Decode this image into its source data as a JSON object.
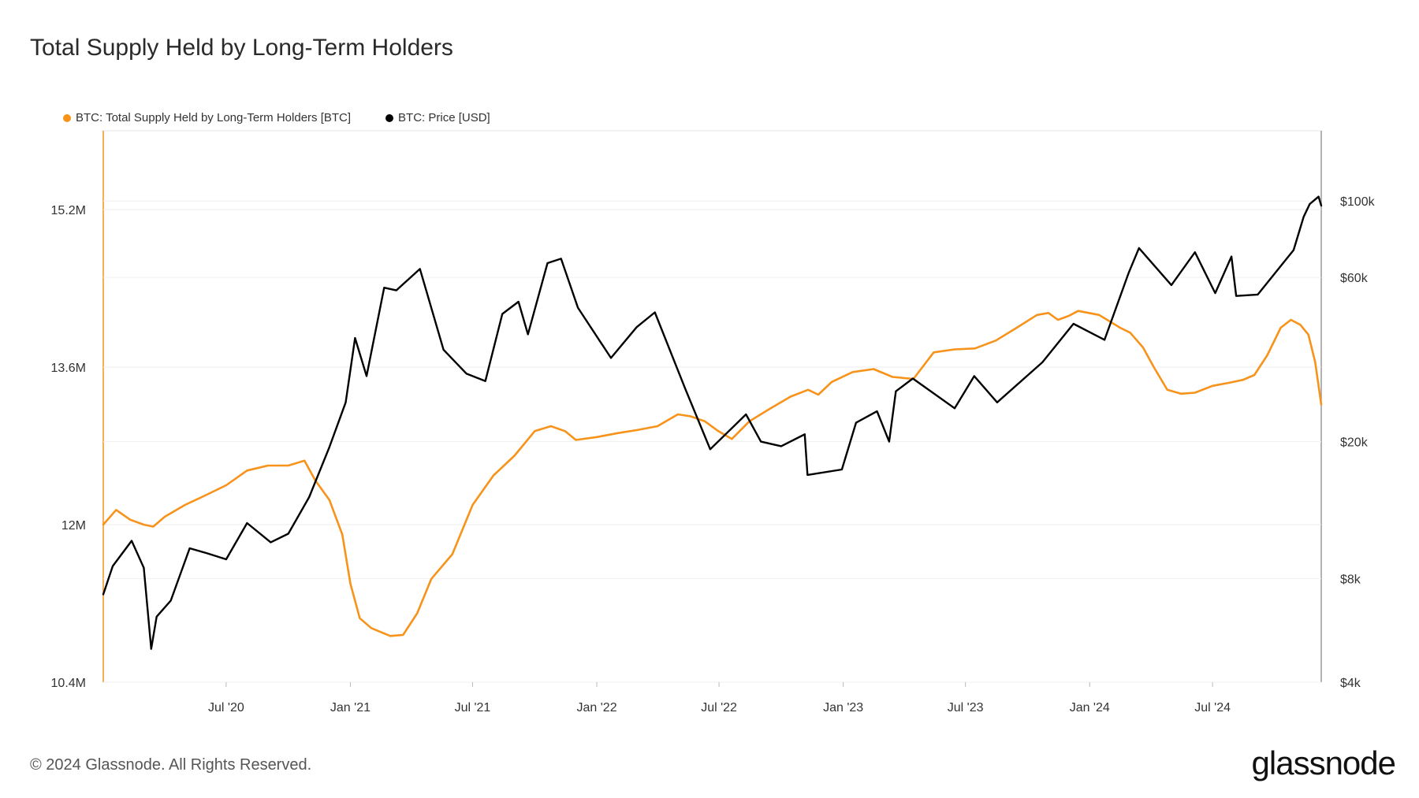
{
  "title": "Total Supply Held by Long-Term Holders",
  "legend": [
    {
      "label": "BTC: Total Supply Held by Long-Term Holders [BTC]",
      "color": "#f7931a"
    },
    {
      "label": "BTC: Price [USD]",
      "color": "#000000"
    }
  ],
  "footer": "© 2024 Glassnode. All Rights Reserved.",
  "logo": "glassnode",
  "chart_data": {
    "type": "line",
    "x_range": [
      "2020-01-01",
      "2024-12-09"
    ],
    "x_ticks": [
      {
        "date": "2020-07-01",
        "label": "Jul '20"
      },
      {
        "date": "2021-01-01",
        "label": "Jan '21"
      },
      {
        "date": "2021-07-01",
        "label": "Jul '21"
      },
      {
        "date": "2022-01-01",
        "label": "Jan '22"
      },
      {
        "date": "2022-07-01",
        "label": "Jul '22"
      },
      {
        "date": "2023-01-01",
        "label": "Jan '23"
      },
      {
        "date": "2023-07-01",
        "label": "Jul '23"
      },
      {
        "date": "2024-01-01",
        "label": "Jan '24"
      },
      {
        "date": "2024-07-01",
        "label": "Jul '24"
      }
    ],
    "y_left": {
      "range": [
        10400000,
        16000000
      ],
      "ticks": [
        {
          "value": 15200000,
          "label": "15.2M"
        },
        {
          "value": 13600000,
          "label": "13.6M"
        },
        {
          "value": 12000000,
          "label": "12M"
        },
        {
          "value": 10400000,
          "label": "10.4M"
        }
      ]
    },
    "y_right": {
      "scale": "log",
      "range": [
        4000,
        160000
      ],
      "ticks": [
        {
          "value": 100000,
          "label": "$100k"
        },
        {
          "value": 60000,
          "label": "$60k"
        },
        {
          "value": 20000,
          "label": "$20k"
        },
        {
          "value": 8000,
          "label": "$8k"
        },
        {
          "value": 4000,
          "label": "$4k"
        }
      ]
    },
    "series": [
      {
        "name": "BTC: Total Supply Held by Long-Term Holders [BTC]",
        "axis": "left",
        "color": "#f7931a",
        "points": [
          [
            "2020-01-01",
            12000000
          ],
          [
            "2020-01-20",
            12150000
          ],
          [
            "2020-02-10",
            12050000
          ],
          [
            "2020-03-01",
            12000000
          ],
          [
            "2020-03-15",
            11980000
          ],
          [
            "2020-04-01",
            12080000
          ],
          [
            "2020-05-01",
            12200000
          ],
          [
            "2020-06-01",
            12300000
          ],
          [
            "2020-07-01",
            12400000
          ],
          [
            "2020-08-01",
            12550000
          ],
          [
            "2020-09-01",
            12600000
          ],
          [
            "2020-10-01",
            12600000
          ],
          [
            "2020-10-25",
            12650000
          ],
          [
            "2020-11-10",
            12450000
          ],
          [
            "2020-12-01",
            12250000
          ],
          [
            "2020-12-20",
            11900000
          ],
          [
            "2021-01-01",
            11400000
          ],
          [
            "2021-01-15",
            11050000
          ],
          [
            "2021-02-01",
            10950000
          ],
          [
            "2021-03-01",
            10870000
          ],
          [
            "2021-03-20",
            10880000
          ],
          [
            "2021-04-10",
            11100000
          ],
          [
            "2021-05-01",
            11450000
          ],
          [
            "2021-06-01",
            11700000
          ],
          [
            "2021-07-01",
            12200000
          ],
          [
            "2021-08-01",
            12500000
          ],
          [
            "2021-09-01",
            12700000
          ],
          [
            "2021-10-01",
            12950000
          ],
          [
            "2021-10-25",
            13000000
          ],
          [
            "2021-11-15",
            12950000
          ],
          [
            "2021-12-01",
            12860000
          ],
          [
            "2022-01-01",
            12890000
          ],
          [
            "2022-02-01",
            12930000
          ],
          [
            "2022-03-01",
            12960000
          ],
          [
            "2022-04-01",
            13000000
          ],
          [
            "2022-05-01",
            13120000
          ],
          [
            "2022-05-20",
            13100000
          ],
          [
            "2022-06-10",
            13050000
          ],
          [
            "2022-06-30",
            12950000
          ],
          [
            "2022-07-20",
            12870000
          ],
          [
            "2022-08-15",
            13050000
          ],
          [
            "2022-09-15",
            13180000
          ],
          [
            "2022-10-15",
            13300000
          ],
          [
            "2022-11-10",
            13370000
          ],
          [
            "2022-11-25",
            13320000
          ],
          [
            "2022-12-15",
            13450000
          ],
          [
            "2023-01-15",
            13550000
          ],
          [
            "2023-02-15",
            13580000
          ],
          [
            "2023-03-15",
            13500000
          ],
          [
            "2023-04-15",
            13480000
          ],
          [
            "2023-05-15",
            13750000
          ],
          [
            "2023-06-15",
            13780000
          ],
          [
            "2023-07-15",
            13790000
          ],
          [
            "2023-08-15",
            13870000
          ],
          [
            "2023-09-15",
            14000000
          ],
          [
            "2023-10-15",
            14130000
          ],
          [
            "2023-11-01",
            14150000
          ],
          [
            "2023-11-15",
            14080000
          ],
          [
            "2023-12-01",
            14120000
          ],
          [
            "2023-12-15",
            14170000
          ],
          [
            "2024-01-15",
            14130000
          ],
          [
            "2024-02-15",
            14000000
          ],
          [
            "2024-03-01",
            13950000
          ],
          [
            "2024-03-20",
            13800000
          ],
          [
            "2024-04-05",
            13600000
          ],
          [
            "2024-04-25",
            13370000
          ],
          [
            "2024-05-15",
            13330000
          ],
          [
            "2024-06-05",
            13340000
          ],
          [
            "2024-07-01",
            13410000
          ],
          [
            "2024-07-25",
            13440000
          ],
          [
            "2024-08-15",
            13470000
          ],
          [
            "2024-09-01",
            13520000
          ],
          [
            "2024-09-20",
            13720000
          ],
          [
            "2024-10-10",
            14000000
          ],
          [
            "2024-10-25",
            14080000
          ],
          [
            "2024-11-08",
            14030000
          ],
          [
            "2024-11-20",
            13930000
          ],
          [
            "2024-11-30",
            13650000
          ],
          [
            "2024-12-09",
            13220000
          ]
        ]
      },
      {
        "name": "BTC: Price [USD]",
        "axis": "right",
        "color": "#000000",
        "points": [
          [
            "2020-01-01",
            7200
          ],
          [
            "2020-01-15",
            8700
          ],
          [
            "2020-02-12",
            10300
          ],
          [
            "2020-03-01",
            8600
          ],
          [
            "2020-03-12",
            5000
          ],
          [
            "2020-03-20",
            6200
          ],
          [
            "2020-04-10",
            6900
          ],
          [
            "2020-05-08",
            9800
          ],
          [
            "2020-06-01",
            9500
          ],
          [
            "2020-07-01",
            9100
          ],
          [
            "2020-08-01",
            11600
          ],
          [
            "2020-09-05",
            10200
          ],
          [
            "2020-10-01",
            10800
          ],
          [
            "2020-11-01",
            13800
          ],
          [
            "2020-12-01",
            19300
          ],
          [
            "2020-12-25",
            26000
          ],
          [
            "2021-01-08",
            40000
          ],
          [
            "2021-01-25",
            31000
          ],
          [
            "2021-02-20",
            56000
          ],
          [
            "2021-03-10",
            55000
          ],
          [
            "2021-04-14",
            63500
          ],
          [
            "2021-05-19",
            37000
          ],
          [
            "2021-06-22",
            31500
          ],
          [
            "2021-07-20",
            30000
          ],
          [
            "2021-08-14",
            47000
          ],
          [
            "2021-09-07",
            51000
          ],
          [
            "2021-09-21",
            41000
          ],
          [
            "2021-10-20",
            66000
          ],
          [
            "2021-11-09",
            68000
          ],
          [
            "2021-12-04",
            49000
          ],
          [
            "2022-01-22",
            35000
          ],
          [
            "2022-03-01",
            43000
          ],
          [
            "2022-03-28",
            47500
          ],
          [
            "2022-05-12",
            28500
          ],
          [
            "2022-06-18",
            19000
          ],
          [
            "2022-08-10",
            24000
          ],
          [
            "2022-09-01",
            20000
          ],
          [
            "2022-10-01",
            19400
          ],
          [
            "2022-11-05",
            21000
          ],
          [
            "2022-11-09",
            16000
          ],
          [
            "2022-12-30",
            16600
          ],
          [
            "2023-01-20",
            22700
          ],
          [
            "2023-02-20",
            24500
          ],
          [
            "2023-03-10",
            20000
          ],
          [
            "2023-03-20",
            28000
          ],
          [
            "2023-04-14",
            30500
          ],
          [
            "2023-06-15",
            25000
          ],
          [
            "2023-07-14",
            31000
          ],
          [
            "2023-08-17",
            26000
          ],
          [
            "2023-10-23",
            34000
          ],
          [
            "2023-12-08",
            44000
          ],
          [
            "2024-01-23",
            39500
          ],
          [
            "2024-02-28",
            62000
          ],
          [
            "2024-03-14",
            73000
          ],
          [
            "2024-05-01",
            57000
          ],
          [
            "2024-06-05",
            71000
          ],
          [
            "2024-07-05",
            54000
          ],
          [
            "2024-07-29",
            69000
          ],
          [
            "2024-08-05",
            53000
          ],
          [
            "2024-09-06",
            53500
          ],
          [
            "2024-10-29",
            72000
          ],
          [
            "2024-11-13",
            90000
          ],
          [
            "2024-11-22",
            98000
          ],
          [
            "2024-12-05",
            103000
          ],
          [
            "2024-12-09",
            97000
          ]
        ]
      }
    ]
  }
}
